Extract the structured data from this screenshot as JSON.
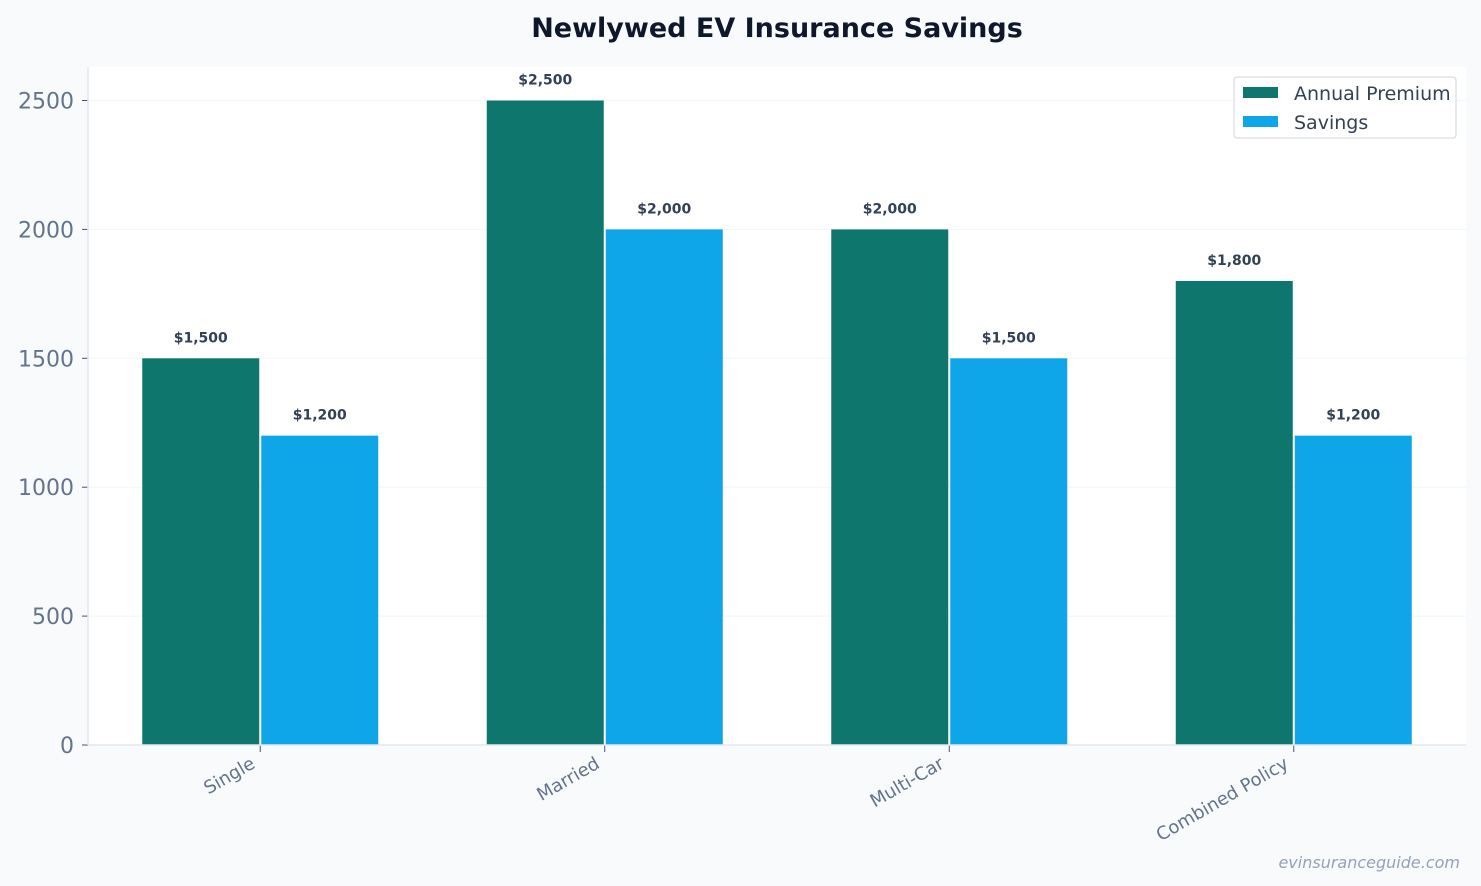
{
  "chart_data": {
    "type": "bar",
    "title": "Newlywed EV Insurance Savings",
    "xlabel": "",
    "ylabel": "",
    "categories": [
      "Single",
      "Married",
      "Multi-Car",
      "Combined Policy"
    ],
    "series": [
      {
        "name": "Annual Premium",
        "values": [
          1500,
          2500,
          2000,
          1800
        ],
        "labels": [
          "$1,500",
          "$2,500",
          "$2,000",
          "$1,800"
        ],
        "color": "#0f766e"
      },
      {
        "name": "Savings",
        "values": [
          1200,
          2000,
          1500,
          1200
        ],
        "labels": [
          "$1,200",
          "$2,000",
          "$1,500",
          "$1,200"
        ],
        "color": "#0ea5e9"
      }
    ],
    "ylim": [
      0,
      2630
    ],
    "yticks": [
      0,
      500,
      1000,
      1500,
      2000,
      2500
    ],
    "grid": true,
    "legend": "top-right"
  },
  "watermark": "evinsuranceguide.com"
}
